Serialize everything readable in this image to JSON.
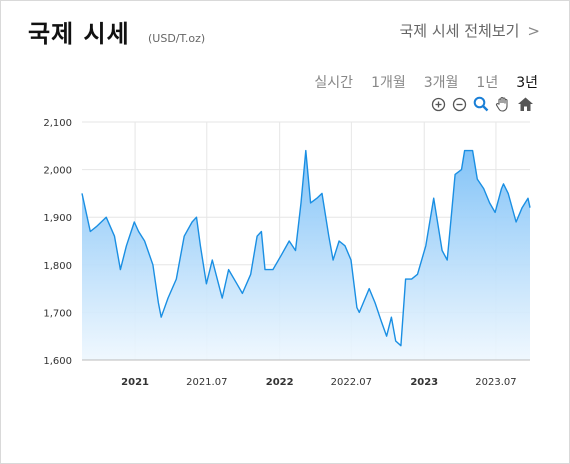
{
  "header": {
    "title": "국제 시세",
    "unit": "(USD/T.oz)",
    "view_all_label": "국제 시세 전체보기",
    "view_all_chevron": ">"
  },
  "tabs": [
    {
      "label": "실시간",
      "active": false
    },
    {
      "label": "1개월",
      "active": false
    },
    {
      "label": "3개월",
      "active": false
    },
    {
      "label": "1년",
      "active": false
    },
    {
      "label": "3년",
      "active": true
    }
  ],
  "toolbar": [
    "zoom-in-icon",
    "zoom-out-icon",
    "zoom-select-icon",
    "pan-hand-icon",
    "home-icon"
  ],
  "colors": {
    "line": "#1a8fe3",
    "fill_top": "#7cc0f7",
    "fill_bottom": "#eef7fe",
    "grid": "#e6e6e6"
  },
  "chart_data": {
    "type": "area",
    "title": "",
    "xlabel": "",
    "ylabel": "",
    "ylim": [
      1600,
      2100
    ],
    "xlim": [
      "2020-08-20",
      "2023-09-25"
    ],
    "y_ticks": [
      "1,600",
      "1,700",
      "1,800",
      "1,900",
      "2,000",
      "2,100"
    ],
    "x_ticks": [
      {
        "label": "2021",
        "date": "2021-01-01",
        "bold": true
      },
      {
        "label": "2021.07",
        "date": "2021-07-01",
        "bold": false
      },
      {
        "label": "2022",
        "date": "2022-01-01",
        "bold": true
      },
      {
        "label": "2022.07",
        "date": "2022-07-01",
        "bold": false
      },
      {
        "label": "2023",
        "date": "2023-01-01",
        "bold": true
      },
      {
        "label": "2023.07",
        "date": "2023-07-01",
        "bold": false
      }
    ],
    "grid": true,
    "series": [
      {
        "x": [
          "2020-08-20",
          "2020-09-10",
          "2020-09-25",
          "2020-10-20",
          "2020-11-10",
          "2020-11-25",
          "2020-12-10",
          "2020-12-30",
          "2021-01-10",
          "2021-01-25",
          "2021-02-15",
          "2021-03-01",
          "2021-03-08",
          "2021-03-25",
          "2021-04-15",
          "2021-05-05",
          "2021-05-25",
          "2021-06-05",
          "2021-06-15",
          "2021-06-30",
          "2021-07-15",
          "2021-08-09",
          "2021-08-25",
          "2021-09-15",
          "2021-09-29",
          "2021-10-20",
          "2021-11-05",
          "2021-11-16",
          "2021-11-25",
          "2021-12-15",
          "2022-01-05",
          "2022-01-25",
          "2022-02-10",
          "2022-02-24",
          "2022-03-08",
          "2022-03-20",
          "2022-04-05",
          "2022-04-18",
          "2022-05-05",
          "2022-05-16",
          "2022-05-31",
          "2022-06-15",
          "2022-06-30",
          "2022-07-15",
          "2022-07-21",
          "2022-08-15",
          "2022-08-30",
          "2022-09-15",
          "2022-09-28",
          "2022-10-10",
          "2022-10-21",
          "2022-11-03",
          "2022-11-15",
          "2022-11-30",
          "2022-12-15",
          "2023-01-05",
          "2023-01-25",
          "2023-02-15",
          "2023-02-28",
          "2023-03-10",
          "2023-03-20",
          "2023-04-05",
          "2023-04-13",
          "2023-05-03",
          "2023-05-15",
          "2023-05-31",
          "2023-06-15",
          "2023-06-29",
          "2023-07-15",
          "2023-07-20",
          "2023-08-01",
          "2023-08-21",
          "2023-09-05",
          "2023-09-20",
          "2023-09-25"
        ],
        "values": [
          1950,
          1870,
          1880,
          1900,
          1860,
          1790,
          1840,
          1890,
          1870,
          1850,
          1800,
          1720,
          1690,
          1730,
          1770,
          1860,
          1890,
          1900,
          1840,
          1760,
          1810,
          1730,
          1790,
          1760,
          1740,
          1780,
          1860,
          1870,
          1790,
          1790,
          1820,
          1850,
          1830,
          1930,
          2040,
          1930,
          1940,
          1950,
          1860,
          1810,
          1850,
          1840,
          1810,
          1710,
          1700,
          1750,
          1720,
          1680,
          1650,
          1690,
          1640,
          1630,
          1770,
          1770,
          1780,
          1840,
          1940,
          1830,
          1810,
          1900,
          1990,
          2000,
          2040,
          2040,
          1980,
          1960,
          1930,
          1910,
          1960,
          1970,
          1950,
          1890,
          1920,
          1940,
          1920
        ]
      }
    ]
  }
}
